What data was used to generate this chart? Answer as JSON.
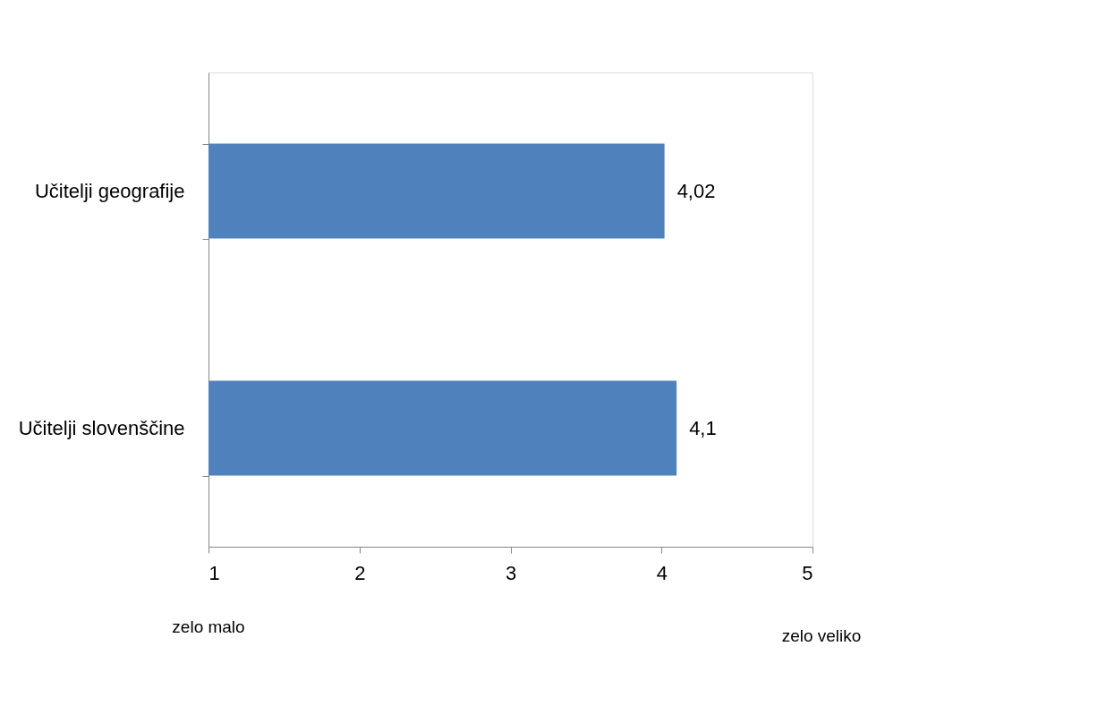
{
  "chart_data": {
    "type": "bar",
    "orientation": "horizontal",
    "categories": [
      "Učitelji geografije",
      "Učitelji slovenščine"
    ],
    "values": [
      4.02,
      4.1
    ],
    "value_labels": [
      "4,02",
      "4,1"
    ],
    "color": "#4f81bd",
    "xlim": [
      1,
      5
    ],
    "xticks": [
      1,
      2,
      3,
      4,
      5
    ],
    "grid": false,
    "legend": false,
    "annotations": [
      "zelo malo",
      "zelo veliko"
    ]
  }
}
